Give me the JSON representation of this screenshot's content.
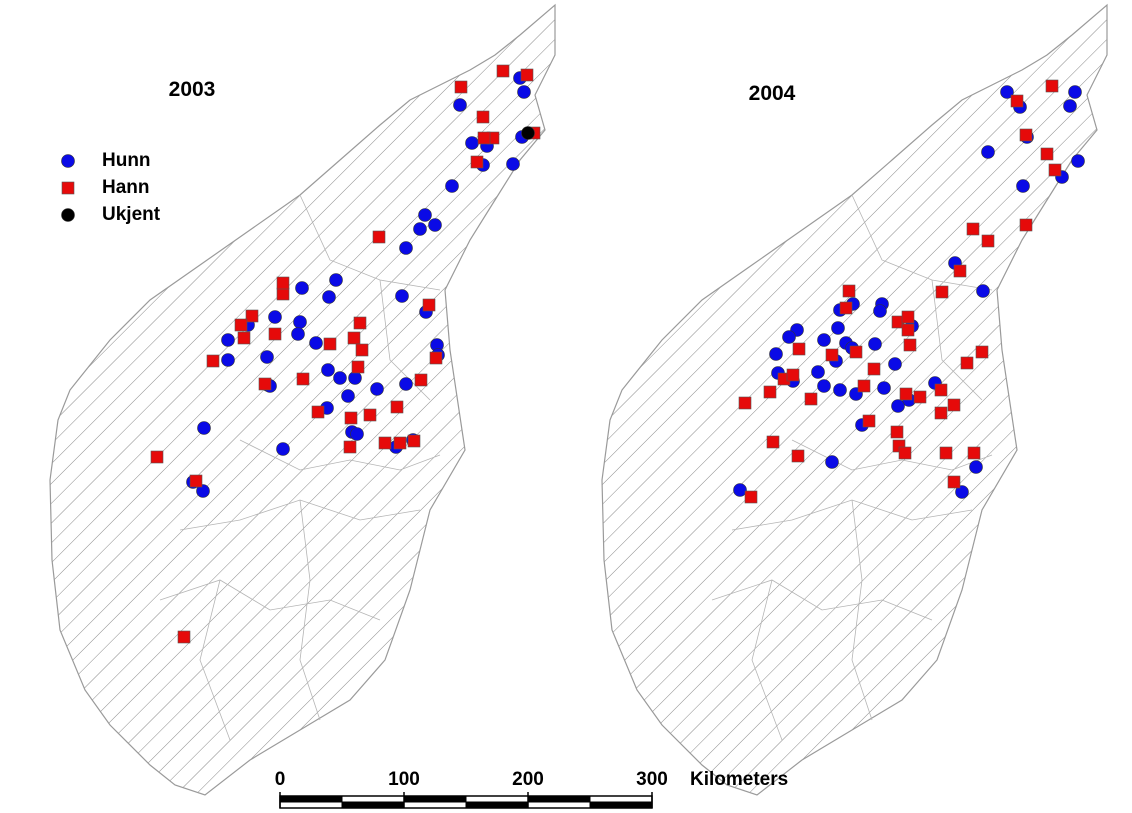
{
  "maps": [
    {
      "title": "2003"
    },
    {
      "title": "2004"
    }
  ],
  "legend": [
    {
      "label": "Hunn",
      "color": "#0a0ae6"
    },
    {
      "label": "Hann",
      "color": "#e60a0a"
    },
    {
      "label": "Ukjent",
      "color": "#000000"
    }
  ],
  "scale": {
    "ticks": [
      0,
      100,
      200,
      300
    ],
    "unit": "Kilometers"
  }
}
